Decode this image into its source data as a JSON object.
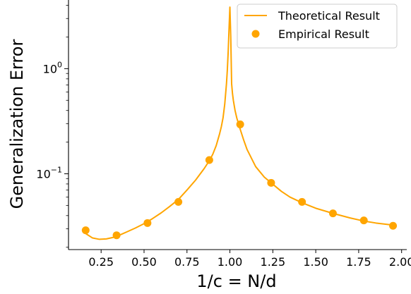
{
  "chart_data": {
    "type": "line",
    "xlabel": "1/c = N/d",
    "ylabel": "Generalization Error",
    "xlim": [
      0.06,
      2.03
    ],
    "ylim": [
      0.019,
      4.5
    ],
    "y_scale": "log",
    "x_ticks": [
      0.25,
      0.5,
      0.75,
      1.0,
      1.25,
      1.5,
      1.75,
      2.0
    ],
    "x_tick_labels": [
      "0.25",
      "0.50",
      "0.75",
      "1.00",
      "1.25",
      "1.50",
      "1.75",
      "2.00"
    ],
    "y_major_ticks": [
      {
        "value": 1,
        "base": "10",
        "exponent": "0"
      },
      {
        "value": 0.1,
        "base": "10",
        "exponent": "−1"
      }
    ],
    "y_minor_ticks": [
      0.02,
      0.03,
      0.04,
      0.05,
      0.06,
      0.07,
      0.08,
      0.09,
      0.2,
      0.3,
      0.4,
      0.5,
      0.6,
      0.7,
      0.8,
      0.9,
      2,
      3,
      4
    ],
    "grid": false,
    "legend_position": "top-right",
    "color": "#FFA500",
    "series": [
      {
        "name": "Theoretical Result",
        "kind": "line",
        "x": [
          0.16,
          0.2,
          0.24,
          0.28,
          0.32,
          0.36,
          0.4,
          0.45,
          0.5,
          0.55,
          0.6,
          0.65,
          0.7,
          0.75,
          0.8,
          0.85,
          0.88,
          0.9,
          0.92,
          0.94,
          0.95,
          0.96,
          0.97,
          0.98,
          0.985,
          0.99,
          0.995,
          1.0,
          1.005,
          1.01,
          1.015,
          1.02,
          1.03,
          1.04,
          1.05,
          1.06,
          1.08,
          1.1,
          1.15,
          1.2,
          1.24,
          1.3,
          1.35,
          1.42,
          1.5,
          1.6,
          1.7,
          1.78,
          1.85,
          1.95
        ],
        "y": [
          0.027,
          0.0245,
          0.0238,
          0.024,
          0.0248,
          0.0262,
          0.028,
          0.0305,
          0.0335,
          0.0375,
          0.0425,
          0.049,
          0.057,
          0.07,
          0.087,
          0.112,
          0.133,
          0.153,
          0.185,
          0.24,
          0.28,
          0.34,
          0.46,
          0.72,
          0.97,
          1.45,
          2.4,
          3.85,
          2.0,
          0.72,
          0.58,
          0.5,
          0.4,
          0.34,
          0.3,
          0.265,
          0.21,
          0.17,
          0.117,
          0.093,
          0.082,
          0.068,
          0.06,
          0.053,
          0.047,
          0.042,
          0.038,
          0.0355,
          0.034,
          0.0325
        ]
      },
      {
        "name": "Empirical Result",
        "kind": "scatter",
        "x": [
          0.16,
          0.34,
          0.52,
          0.7,
          0.88,
          1.06,
          1.24,
          1.42,
          1.6,
          1.78,
          1.95
        ],
        "y": [
          0.029,
          0.026,
          0.034,
          0.054,
          0.135,
          0.295,
          0.082,
          0.054,
          0.042,
          0.036,
          0.032
        ]
      }
    ]
  }
}
